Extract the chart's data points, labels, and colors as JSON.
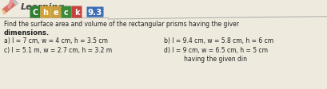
{
  "title_learning": "Learning",
  "check_letters": [
    "C",
    "h",
    "e",
    "c",
    "k"
  ],
  "check_letter_colors": [
    "#2e7d32",
    "#e8a030",
    "#e8a030",
    "#3a9a3a",
    "#e05050"
  ],
  "check_number": "9.3",
  "check_number_bg": "#3a6db5",
  "line1": "Find the surface area and volume of the rectangular prisms having the giver",
  "line2": "dimensions.",
  "item_a": "a) l = 7 cm, w = 4 cm, h = 3.5 cm",
  "item_b": "b) l = 9.4 cm, w = 5.8 cm, h = 6 cm",
  "item_c": "c) l = 5.1 m, w = 2.7 cm, h = 3.2 m",
  "item_d": "d) l = 9 cm, w = 6.5 cm, h = 5 cm",
  "bg_color": "#eeeade",
  "text_color": "#222222"
}
